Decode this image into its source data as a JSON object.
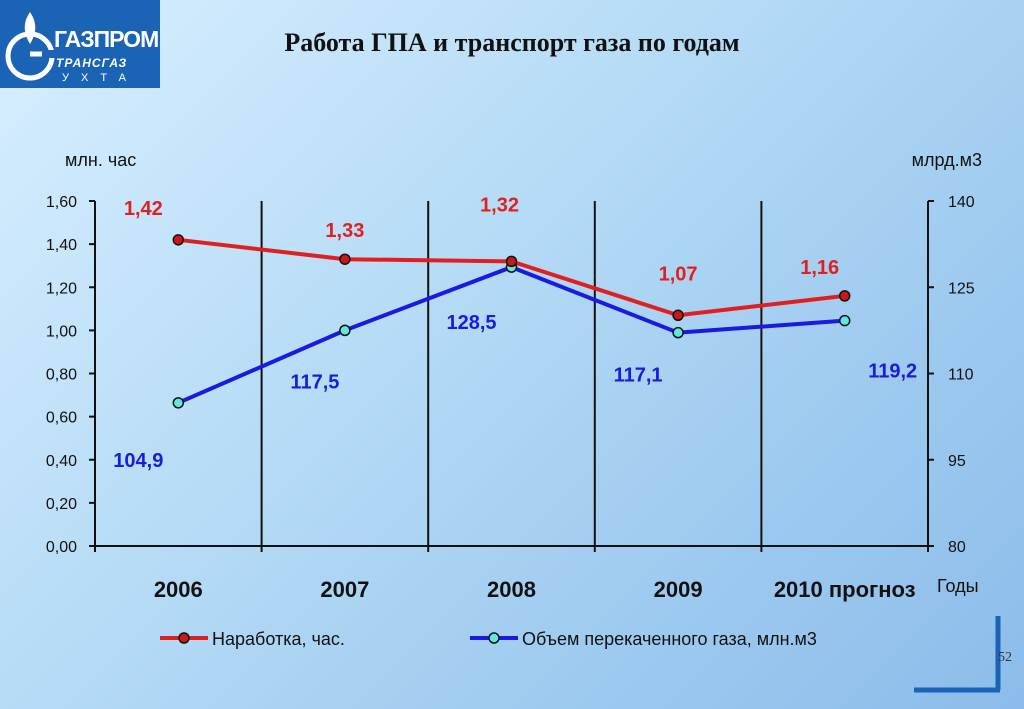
{
  "logo": {
    "main": "ГАЗПРОМ",
    "sub": "ТРАНСГАЗ",
    "city": "УХТА"
  },
  "title": "Работа ГПА и транспорт газа по годам",
  "page_number": "52",
  "chart_data": {
    "type": "line",
    "categories": [
      "2006",
      "2007",
      "2008",
      "2009",
      "2010 прогноз"
    ],
    "xlabel": "Годы",
    "y_left": {
      "label": "млн. час",
      "range": [
        0,
        1.6
      ],
      "ticks": [
        "0,00",
        "0,20",
        "0,40",
        "0,60",
        "0,80",
        "1,00",
        "1,20",
        "1,40",
        "1,60"
      ]
    },
    "y_right": {
      "label": "млрд.м3",
      "range": [
        80,
        140
      ],
      "ticks": [
        "80",
        "95",
        "110",
        "125",
        "140"
      ]
    },
    "series": [
      {
        "name": "Наработка, час.",
        "axis": "left",
        "color": "#e02020",
        "values": [
          1.42,
          1.33,
          1.32,
          1.07,
          1.16
        ],
        "labels": [
          "1,42",
          "1,33",
          "1,32",
          "1,07",
          "1,16"
        ]
      },
      {
        "name": "Объем перекаченного газа, млн.м3",
        "axis": "right",
        "color": "#1a1ae0",
        "values": [
          104.9,
          117.5,
          128.5,
          117.1,
          119.2
        ],
        "labels": [
          "104,9",
          "117,5",
          "128,5",
          "117,1",
          "119,2"
        ]
      }
    ],
    "legend": "bottom",
    "grid": "vertical category dividers"
  }
}
